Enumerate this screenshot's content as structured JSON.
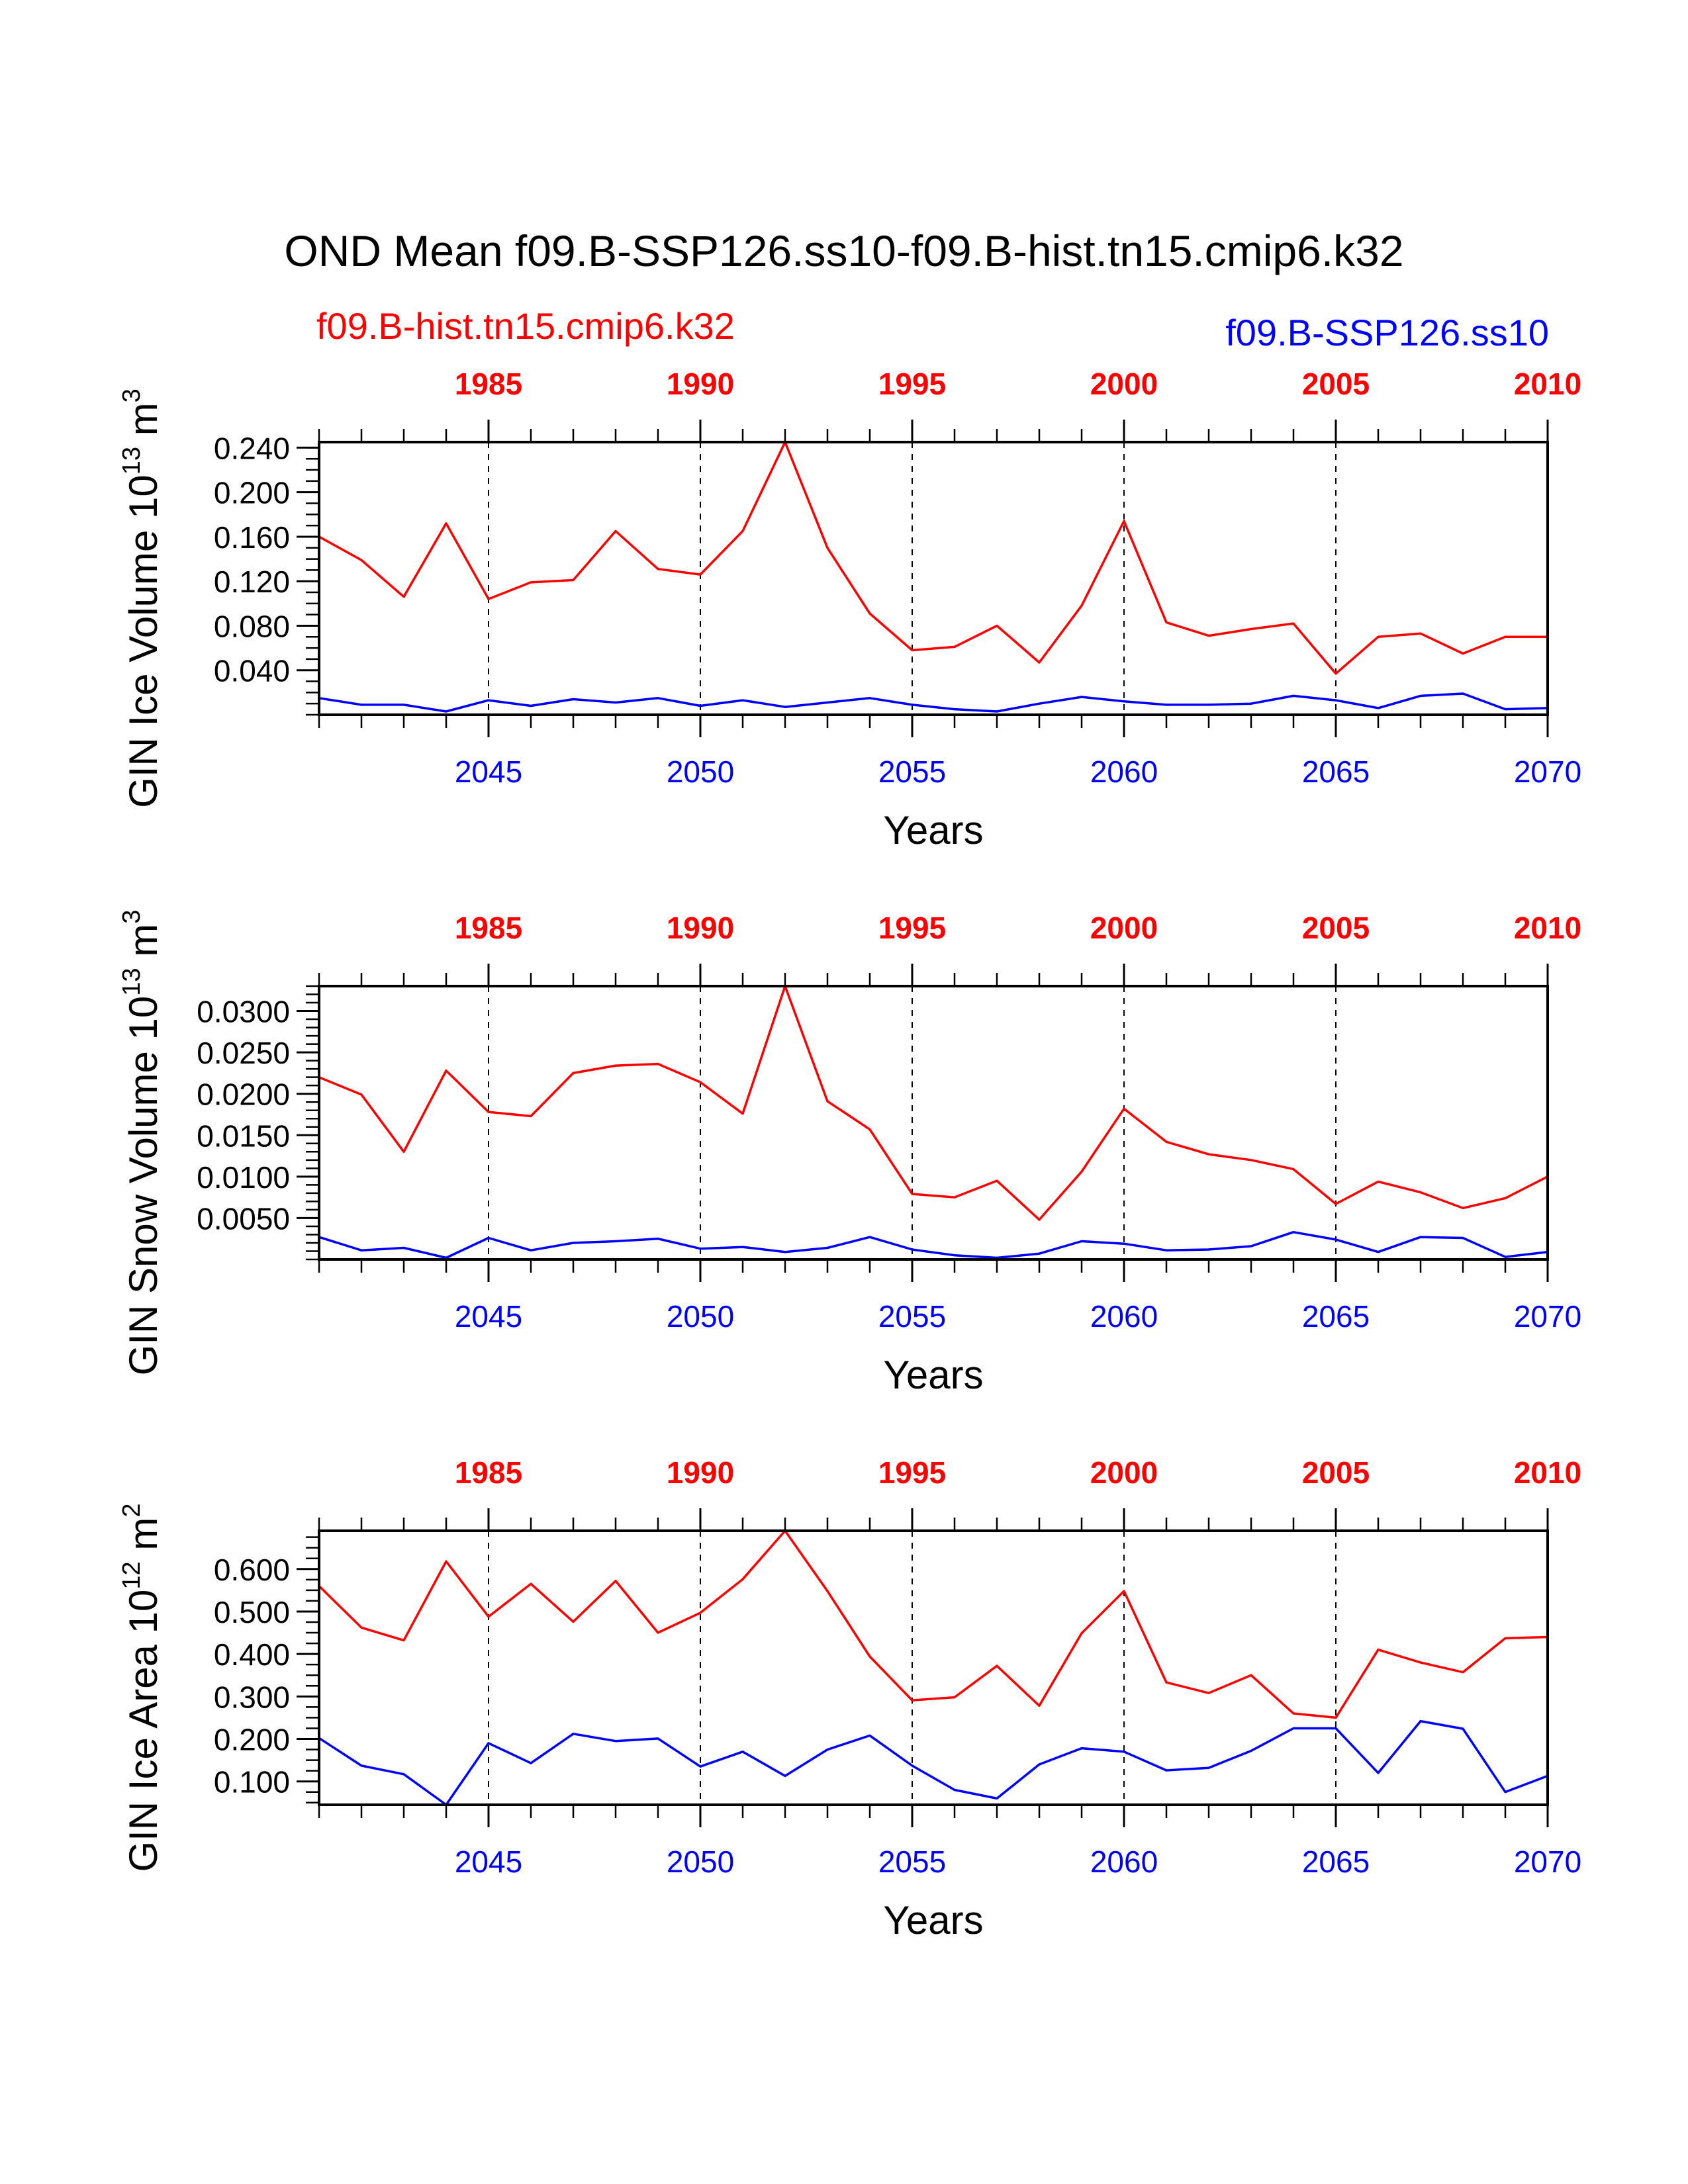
{
  "title": "OND Mean f09.B-SSP126.ss10-f09.B-hist.tn15.cmip6.k32",
  "legend": {
    "left_label": "f09.B-hist.tn15.cmip6.k32",
    "left_color": "#ff0000",
    "right_label": "f09.B-SSP126.ss10",
    "right_color": "#0000ff"
  },
  "chart_data": [
    {
      "type": "line",
      "ylabel_main": "GIN Ice Volume 10",
      "ylabel_exp": "13",
      "ylabel_unit": " m",
      "ylabel_unit_exp": "3",
      "xlabel": "Years",
      "ylim": [
        0,
        0.245
      ],
      "yticks": [
        "0.040",
        "0.080",
        "0.120",
        "0.160",
        "0.200",
        "0.240"
      ],
      "ytick_values": [
        0.04,
        0.08,
        0.12,
        0.16,
        0.2,
        0.24
      ],
      "yminor_step": 0.01,
      "x_bottom": {
        "lim": [
          2041,
          2070
        ],
        "ticks": [
          "2045",
          "2050",
          "2055",
          "2060",
          "2065",
          "2070"
        ],
        "tick_values": [
          2045,
          2050,
          2055,
          2060,
          2065,
          2070
        ],
        "color": "#0000ff"
      },
      "x_top": {
        "lim": [
          1981,
          2010
        ],
        "ticks": [
          "1985",
          "1990",
          "1995",
          "2000",
          "2005",
          "2010"
        ],
        "tick_values": [
          1985,
          1990,
          1995,
          2000,
          2005,
          2010
        ],
        "color": "#ff0000"
      },
      "series": [
        {
          "name": "f09.B-hist.tn15.cmip6.k32",
          "color": "#ff0000",
          "x": [
            1981,
            1982,
            1983,
            1984,
            1985,
            1986,
            1987,
            1988,
            1989,
            1990,
            1991,
            1992,
            1993,
            1994,
            1995,
            1996,
            1997,
            1998,
            1999,
            2000,
            2001,
            2002,
            2003,
            2004,
            2005,
            2006,
            2007,
            2008,
            2009,
            2010
          ],
          "values": [
            0.16,
            0.139,
            0.106,
            0.172,
            0.104,
            0.119,
            0.121,
            0.165,
            0.131,
            0.126,
            0.165,
            0.245,
            0.15,
            0.091,
            0.058,
            0.061,
            0.08,
            0.047,
            0.098,
            0.174,
            0.083,
            0.071,
            0.077,
            0.082,
            0.037,
            0.07,
            0.073,
            0.055,
            0.07,
            0.07
          ]
        },
        {
          "name": "f09.B-SSP126.ss10",
          "color": "#0000ff",
          "x": [
            2041,
            2042,
            2043,
            2044,
            2045,
            2046,
            2047,
            2048,
            2049,
            2050,
            2051,
            2052,
            2053,
            2054,
            2055,
            2056,
            2057,
            2058,
            2059,
            2060,
            2061,
            2062,
            2063,
            2064,
            2065,
            2066,
            2067,
            2068,
            2069,
            2070
          ],
          "values": [
            0.015,
            0.009,
            0.009,
            0.003,
            0.013,
            0.008,
            0.014,
            0.011,
            0.015,
            0.008,
            0.013,
            0.007,
            0.011,
            0.015,
            0.009,
            0.005,
            0.003,
            0.01,
            0.016,
            0.012,
            0.009,
            0.009,
            0.01,
            0.017,
            0.013,
            0.006,
            0.017,
            0.019,
            0.005,
            0.006
          ]
        }
      ]
    },
    {
      "type": "line",
      "ylabel_main": "GIN Snow Volume 10",
      "ylabel_exp": "13",
      "ylabel_unit": " m",
      "ylabel_unit_exp": "3",
      "xlabel": "Years",
      "ylim": [
        0,
        0.033
      ],
      "yticks": [
        "0.0050",
        "0.0100",
        "0.0150",
        "0.0200",
        "0.0250",
        "0.0300"
      ],
      "ytick_values": [
        0.005,
        0.01,
        0.015,
        0.02,
        0.025,
        0.03
      ],
      "yminor_step": 0.001,
      "x_bottom": {
        "lim": [
          2041,
          2070
        ],
        "ticks": [
          "2045",
          "2050",
          "2055",
          "2060",
          "2065",
          "2070"
        ],
        "tick_values": [
          2045,
          2050,
          2055,
          2060,
          2065,
          2070
        ],
        "color": "#0000ff"
      },
      "x_top": {
        "lim": [
          1981,
          2010
        ],
        "ticks": [
          "1985",
          "1990",
          "1995",
          "2000",
          "2005",
          "2010"
        ],
        "tick_values": [
          1985,
          1990,
          1995,
          2000,
          2005,
          2010
        ],
        "color": "#ff0000"
      },
      "series": [
        {
          "name": "f09.B-hist.tn15.cmip6.k32",
          "color": "#ff0000",
          "x": [
            1981,
            1982,
            1983,
            1984,
            1985,
            1986,
            1987,
            1988,
            1989,
            1990,
            1991,
            1992,
            1993,
            1994,
            1995,
            1996,
            1997,
            1998,
            1999,
            2000,
            2001,
            2002,
            2003,
            2004,
            2005,
            2006,
            2007,
            2008,
            2009,
            2010
          ],
          "values": [
            0.022,
            0.0199,
            0.013,
            0.0228,
            0.0178,
            0.0173,
            0.0225,
            0.0234,
            0.0236,
            0.0214,
            0.0176,
            0.033,
            0.0191,
            0.0157,
            0.0079,
            0.0075,
            0.0095,
            0.0048,
            0.0106,
            0.0182,
            0.0142,
            0.0127,
            0.012,
            0.0109,
            0.0067,
            0.0094,
            0.0081,
            0.0062,
            0.0074,
            0.01
          ]
        },
        {
          "name": "f09.B-SSP126.ss10",
          "color": "#0000ff",
          "x": [
            2041,
            2042,
            2043,
            2044,
            2045,
            2046,
            2047,
            2048,
            2049,
            2050,
            2051,
            2052,
            2053,
            2054,
            2055,
            2056,
            2057,
            2058,
            2059,
            2060,
            2061,
            2062,
            2063,
            2064,
            2065,
            2066,
            2067,
            2068,
            2069,
            2070
          ],
          "values": [
            0.0027,
            0.0011,
            0.0014,
            0.0002,
            0.0026,
            0.0011,
            0.002,
            0.0022,
            0.0025,
            0.0013,
            0.0015,
            0.0009,
            0.0014,
            0.0027,
            0.0012,
            0.0005,
            0.0002,
            0.0007,
            0.0022,
            0.0019,
            0.0011,
            0.0012,
            0.0016,
            0.0033,
            0.0024,
            0.0009,
            0.0027,
            0.0026,
            0.0003,
            0.0009
          ]
        }
      ]
    },
    {
      "type": "line",
      "ylabel_main": "GIN Ice Area 10",
      "ylabel_exp": "12",
      "ylabel_unit": " m",
      "ylabel_unit_exp": "2",
      "xlabel": "Years",
      "ylim": [
        0.045,
        0.69
      ],
      "yticks": [
        "0.100",
        "0.200",
        "0.300",
        "0.400",
        "0.500",
        "0.600"
      ],
      "ytick_values": [
        0.1,
        0.2,
        0.3,
        0.4,
        0.5,
        0.6
      ],
      "yminor_step": 0.025,
      "x_bottom": {
        "lim": [
          2041,
          2070
        ],
        "ticks": [
          "2045",
          "2050",
          "2055",
          "2060",
          "2065",
          "2070"
        ],
        "tick_values": [
          2045,
          2050,
          2055,
          2060,
          2065,
          2070
        ],
        "color": "#0000ff"
      },
      "x_top": {
        "lim": [
          1981,
          2010
        ],
        "ticks": [
          "1985",
          "1990",
          "1995",
          "2000",
          "2005",
          "2010"
        ],
        "tick_values": [
          1985,
          1990,
          1995,
          2000,
          2005,
          2010
        ],
        "color": "#ff0000"
      },
      "series": [
        {
          "name": "f09.B-hist.tn15.cmip6.k32",
          "color": "#ff0000",
          "x": [
            1981,
            1982,
            1983,
            1984,
            1985,
            1986,
            1987,
            1988,
            1989,
            1990,
            1991,
            1992,
            1993,
            1994,
            1995,
            1996,
            1997,
            1998,
            1999,
            2000,
            2001,
            2002,
            2003,
            2004,
            2005,
            2006,
            2007,
            2008,
            2009,
            2010
          ],
          "values": [
            0.56,
            0.462,
            0.432,
            0.618,
            0.488,
            0.565,
            0.476,
            0.572,
            0.45,
            0.497,
            0.576,
            0.69,
            0.548,
            0.394,
            0.291,
            0.298,
            0.372,
            0.278,
            0.449,
            0.548,
            0.333,
            0.308,
            0.35,
            0.26,
            0.25,
            0.41,
            0.38,
            0.357,
            0.437,
            0.44
          ]
        },
        {
          "name": "f09.B-SSP126.ss10",
          "color": "#0000ff",
          "x": [
            2041,
            2042,
            2043,
            2044,
            2045,
            2046,
            2047,
            2048,
            2049,
            2050,
            2051,
            2052,
            2053,
            2054,
            2055,
            2056,
            2057,
            2058,
            2059,
            2060,
            2061,
            2062,
            2063,
            2064,
            2065,
            2066,
            2067,
            2068,
            2069,
            2070
          ],
          "values": [
            0.202,
            0.137,
            0.117,
            0.045,
            0.19,
            0.143,
            0.212,
            0.195,
            0.201,
            0.135,
            0.17,
            0.113,
            0.175,
            0.208,
            0.137,
            0.08,
            0.06,
            0.14,
            0.178,
            0.17,
            0.126,
            0.132,
            0.172,
            0.225,
            0.225,
            0.12,
            0.242,
            0.224,
            0.075,
            0.113
          ]
        }
      ]
    }
  ]
}
